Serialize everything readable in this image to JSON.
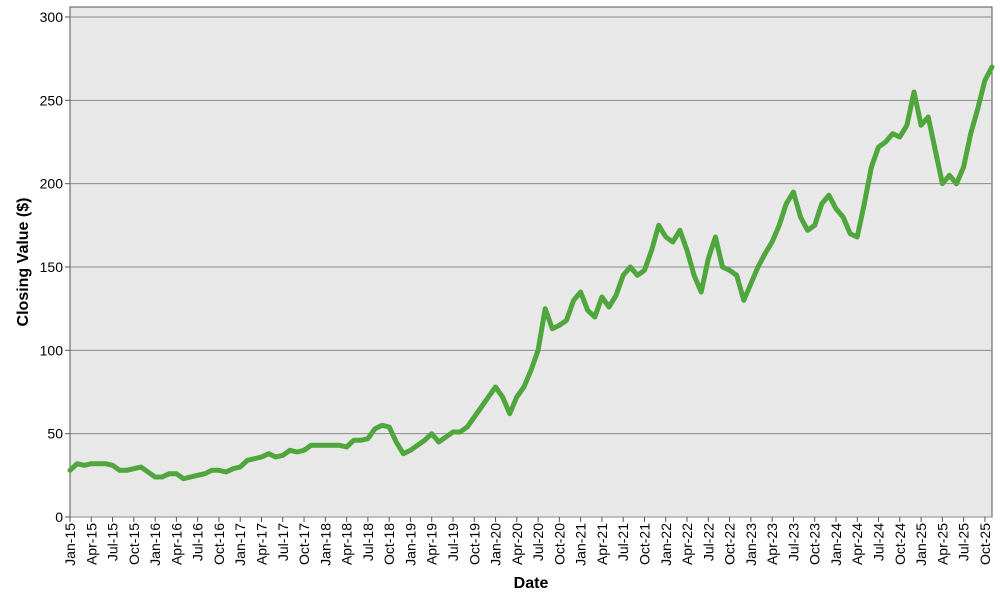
{
  "chart_data": {
    "type": "line",
    "xlabel": "Date",
    "ylabel": "Closing Value ($)",
    "x": [
      "2015-01",
      "2015-02",
      "2015-03",
      "2015-04",
      "2015-05",
      "2015-06",
      "2015-07",
      "2015-08",
      "2015-09",
      "2015-10",
      "2015-11",
      "2015-12",
      "2016-01",
      "2016-02",
      "2016-03",
      "2016-04",
      "2016-05",
      "2016-06",
      "2016-07",
      "2016-08",
      "2016-09",
      "2016-10",
      "2016-11",
      "2016-12",
      "2017-01",
      "2017-02",
      "2017-03",
      "2017-04",
      "2017-05",
      "2017-06",
      "2017-07",
      "2017-08",
      "2017-09",
      "2017-10",
      "2017-11",
      "2017-12",
      "2018-01",
      "2018-02",
      "2018-03",
      "2018-04",
      "2018-05",
      "2018-06",
      "2018-07",
      "2018-08",
      "2018-09",
      "2018-10",
      "2018-11",
      "2018-12",
      "2019-01",
      "2019-02",
      "2019-03",
      "2019-04",
      "2019-05",
      "2019-06",
      "2019-07",
      "2019-08",
      "2019-09",
      "2019-10",
      "2019-11",
      "2019-12",
      "2020-01",
      "2020-02",
      "2020-03",
      "2020-04",
      "2020-05",
      "2020-06",
      "2020-07",
      "2020-08",
      "2020-09",
      "2020-10",
      "2020-11",
      "2020-12",
      "2021-01",
      "2021-02",
      "2021-03",
      "2021-04",
      "2021-05",
      "2021-06",
      "2021-07",
      "2021-08",
      "2021-09",
      "2021-10",
      "2021-11",
      "2021-12",
      "2022-01",
      "2022-02",
      "2022-03",
      "2022-04",
      "2022-05",
      "2022-06",
      "2022-07",
      "2022-08",
      "2022-09",
      "2022-10",
      "2022-11",
      "2022-12",
      "2023-01",
      "2023-02",
      "2023-03",
      "2023-04",
      "2023-05",
      "2023-06",
      "2023-07",
      "2023-08",
      "2023-09",
      "2023-10",
      "2023-11",
      "2023-12",
      "2024-01",
      "2024-02",
      "2024-03",
      "2024-04",
      "2024-05",
      "2024-06",
      "2024-07",
      "2024-08",
      "2024-09",
      "2024-10",
      "2024-11",
      "2024-12",
      "2025-01",
      "2025-02",
      "2025-03",
      "2025-04",
      "2025-05",
      "2025-06",
      "2025-07",
      "2025-08",
      "2025-09",
      "2025-10",
      "2025-11"
    ],
    "series": [
      {
        "name": "Closing Value",
        "color": "#4ea63c",
        "values": [
          28,
          32,
          31,
          32,
          32,
          32,
          31,
          28,
          28,
          29,
          30,
          27,
          24,
          24,
          26,
          26,
          23,
          24,
          25,
          26,
          28,
          28,
          27,
          29,
          30,
          34,
          35,
          36,
          38,
          36,
          37,
          40,
          39,
          40,
          43,
          43,
          43,
          43,
          43,
          42,
          46,
          46,
          47,
          53,
          55,
          54,
          45,
          38,
          40,
          43,
          46,
          50,
          45,
          48,
          51,
          51,
          54,
          60,
          66,
          72,
          78,
          72,
          62,
          72,
          78,
          88,
          100,
          125,
          113,
          115,
          118,
          130,
          135,
          124,
          120,
          132,
          126,
          133,
          145,
          150,
          145,
          148,
          160,
          175,
          168,
          165,
          172,
          160,
          145,
          135,
          155,
          168,
          150,
          148,
          145,
          130,
          140,
          150,
          158,
          165,
          175,
          188,
          195,
          180,
          172,
          175,
          188,
          193,
          185,
          180,
          170,
          168,
          188,
          210,
          222,
          225,
          230,
          228,
          235,
          255,
          235,
          240,
          220,
          200,
          205,
          200,
          210,
          230,
          245,
          262,
          270
        ]
      }
    ],
    "xlim": [
      "2015-01",
      "2025-11"
    ],
    "xticks": [
      {
        "value": "2015-01",
        "label": "Jan-15"
      },
      {
        "value": "2015-04",
        "label": "Apr-15"
      },
      {
        "value": "2015-07",
        "label": "Jul-15"
      },
      {
        "value": "2015-10",
        "label": "Oct-15"
      },
      {
        "value": "2016-01",
        "label": "Jan-16"
      },
      {
        "value": "2016-04",
        "label": "Apr-16"
      },
      {
        "value": "2016-07",
        "label": "Jul-16"
      },
      {
        "value": "2016-10",
        "label": "Oct-16"
      },
      {
        "value": "2017-01",
        "label": "Jan-17"
      },
      {
        "value": "2017-04",
        "label": "Apr-17"
      },
      {
        "value": "2017-07",
        "label": "Jul-17"
      },
      {
        "value": "2017-10",
        "label": "Oct-17"
      },
      {
        "value": "2018-01",
        "label": "Jan-18"
      },
      {
        "value": "2018-04",
        "label": "Apr-18"
      },
      {
        "value": "2018-07",
        "label": "Jul-18"
      },
      {
        "value": "2018-10",
        "label": "Oct-18"
      },
      {
        "value": "2019-01",
        "label": "Jan-19"
      },
      {
        "value": "2019-04",
        "label": "Apr-19"
      },
      {
        "value": "2019-07",
        "label": "Jul-19"
      },
      {
        "value": "2019-10",
        "label": "Oct-19"
      },
      {
        "value": "2020-01",
        "label": "Jan-20"
      },
      {
        "value": "2020-04",
        "label": "Apr-20"
      },
      {
        "value": "2020-07",
        "label": "Jul-20"
      },
      {
        "value": "2020-10",
        "label": "Oct-20"
      },
      {
        "value": "2021-01",
        "label": "Jan-21"
      },
      {
        "value": "2021-04",
        "label": "Apr-21"
      },
      {
        "value": "2021-07",
        "label": "Jul-21"
      },
      {
        "value": "2021-10",
        "label": "Oct-21"
      },
      {
        "value": "2022-01",
        "label": "Jan-22"
      },
      {
        "value": "2022-04",
        "label": "Apr-22"
      },
      {
        "value": "2022-07",
        "label": "Jul-22"
      },
      {
        "value": "2022-10",
        "label": "Oct-22"
      },
      {
        "value": "2023-01",
        "label": "Jan-23"
      },
      {
        "value": "2023-04",
        "label": "Apr-23"
      },
      {
        "value": "2023-07",
        "label": "Jul-23"
      },
      {
        "value": "2023-10",
        "label": "Oct-23"
      },
      {
        "value": "2024-01",
        "label": "Jan-24"
      },
      {
        "value": "2024-04",
        "label": "Apr-24"
      },
      {
        "value": "2024-07",
        "label": "Jul-24"
      },
      {
        "value": "2024-10",
        "label": "Oct-24"
      },
      {
        "value": "2025-01",
        "label": "Jan-25"
      },
      {
        "value": "2025-04",
        "label": "Apr-25"
      },
      {
        "value": "2025-07",
        "label": "Jul-25"
      },
      {
        "value": "2025-10",
        "label": "Oct-25"
      }
    ],
    "ylim": [
      0,
      306
    ],
    "yticks": [
      0,
      50,
      100,
      150,
      200,
      250,
      300
    ],
    "grid": true
  }
}
